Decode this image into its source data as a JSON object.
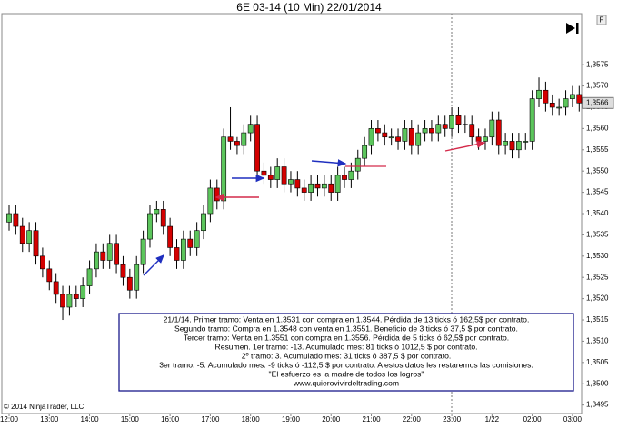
{
  "chart_data": {
    "type": "candlestick",
    "title": "6E 03-14 (10 Min)  22/01/2014",
    "copyright": "© 2014 NinjaTrader, LLC",
    "up_color": "#5cc55c",
    "down_color": "#d40000",
    "categories": [
      "12:00",
      null,
      null,
      null,
      null,
      null,
      "13:00",
      null,
      null,
      null,
      null,
      null,
      "14:00",
      null,
      null,
      null,
      null,
      null,
      "15:00",
      null,
      null,
      null,
      null,
      null,
      "16:00",
      null,
      null,
      null,
      null,
      null,
      "17:00",
      null,
      null,
      null,
      null,
      null,
      "18:00",
      null,
      null,
      null,
      null,
      null,
      "19:00",
      null,
      null,
      null,
      null,
      null,
      "20:00",
      null,
      null,
      null,
      null,
      null,
      "21:00",
      null,
      null,
      null,
      null,
      null,
      "22:00",
      null,
      null,
      null,
      null,
      null,
      "23:00",
      null,
      null,
      null,
      null,
      null,
      "1/22",
      null,
      null,
      null,
      null,
      null,
      "02:00",
      null,
      null,
      null,
      null,
      null,
      "03:00",
      null
    ],
    "open": [
      1.3538,
      1.354,
      1.3537,
      1.3533,
      1.3536,
      1.353,
      1.3527,
      1.3524,
      1.3521,
      1.3518,
      1.3521,
      1.352,
      1.3523,
      1.3527,
      1.3531,
      1.3529,
      1.3533,
      1.3528,
      1.3525,
      1.3522,
      1.3528,
      1.3534,
      1.354,
      1.3541,
      1.3537,
      1.3532,
      1.3529,
      1.3534,
      1.3532,
      1.3536,
      1.354,
      1.3546,
      1.3543,
      1.3558,
      1.3557,
      1.3556,
      1.3559,
      1.3561,
      1.355,
      1.3549,
      1.3548,
      1.3551,
      1.3547,
      1.3548,
      1.3546,
      1.3545,
      1.3547,
      1.3546,
      1.3547,
      1.3545,
      1.3549,
      1.3548,
      1.355,
      1.3553,
      1.3556,
      1.356,
      1.3559,
      1.3558,
      1.3558,
      1.3557,
      1.356,
      1.3556,
      1.3559,
      1.356,
      1.3559,
      1.3561,
      1.356,
      1.3563,
      1.3561,
      1.3561,
      1.3558,
      1.3557,
      1.3558,
      1.3562,
      1.3556,
      1.3557,
      1.3555,
      1.3557,
      1.3557,
      1.3567,
      1.3569,
      1.3566,
      1.3565,
      1.3565,
      1.3567,
      1.3568
    ],
    "high": [
      1.3542,
      1.3542,
      1.3539,
      1.3538,
      1.3538,
      1.3532,
      1.3529,
      1.3526,
      1.3523,
      1.3523,
      1.3523,
      1.3525,
      1.3529,
      1.3533,
      1.3533,
      1.3535,
      1.3535,
      1.353,
      1.3527,
      1.353,
      1.3536,
      1.3542,
      1.3543,
      1.3543,
      1.3539,
      1.3534,
      1.3536,
      1.3536,
      1.3538,
      1.3542,
      1.3548,
      1.3548,
      1.356,
      1.3565,
      1.3558,
      1.3561,
      1.3563,
      1.3563,
      1.3552,
      1.3551,
      1.3553,
      1.3553,
      1.355,
      1.355,
      1.3548,
      1.3549,
      1.3549,
      1.3549,
      1.3549,
      1.3551,
      1.3551,
      1.3552,
      1.3555,
      1.3558,
      1.3562,
      1.3562,
      1.3561,
      1.356,
      1.356,
      1.3562,
      1.3562,
      1.3561,
      1.3562,
      1.3562,
      1.3563,
      1.3563,
      1.3565,
      1.3565,
      1.3563,
      1.3563,
      1.356,
      1.356,
      1.3564,
      1.3564,
      1.3559,
      1.3559,
      1.3559,
      1.3559,
      1.3569,
      1.3572,
      1.3571,
      1.3568,
      1.3567,
      1.3569,
      1.357,
      1.357
    ],
    "low": [
      1.3536,
      1.3535,
      1.3531,
      1.3531,
      1.3528,
      1.3525,
      1.3522,
      1.3519,
      1.3515,
      1.3516,
      1.3518,
      1.3518,
      1.3521,
      1.3525,
      1.3527,
      1.3527,
      1.3526,
      1.3523,
      1.352,
      1.352,
      1.3526,
      1.3532,
      1.3538,
      1.3535,
      1.353,
      1.3527,
      1.3527,
      1.353,
      1.353,
      1.3534,
      1.3538,
      1.3541,
      1.3541,
      1.3555,
      1.3554,
      1.3554,
      1.3557,
      1.3548,
      1.3547,
      1.3546,
      1.3546,
      1.3545,
      1.3545,
      1.3544,
      1.3543,
      1.3543,
      1.3544,
      1.3544,
      1.3543,
      1.3543,
      1.3546,
      1.3546,
      1.3548,
      1.3551,
      1.3554,
      1.3557,
      1.3556,
      1.3556,
      1.3555,
      1.3555,
      1.3554,
      1.3554,
      1.3557,
      1.3557,
      1.3557,
      1.3558,
      1.3558,
      1.3559,
      1.3559,
      1.3556,
      1.3555,
      1.3555,
      1.3556,
      1.3554,
      1.3554,
      1.3553,
      1.3553,
      1.3555,
      1.3555,
      1.3565,
      1.3564,
      1.3563,
      1.3563,
      1.3563,
      1.3565,
      1.3564
    ],
    "close": [
      1.354,
      1.3537,
      1.3533,
      1.3536,
      1.353,
      1.3527,
      1.3524,
      1.3521,
      1.3518,
      1.3521,
      1.352,
      1.3523,
      1.3527,
      1.3531,
      1.3529,
      1.3533,
      1.3528,
      1.3525,
      1.3522,
      1.3528,
      1.3534,
      1.354,
      1.3541,
      1.3537,
      1.3532,
      1.3529,
      1.3534,
      1.3532,
      1.3536,
      1.354,
      1.3546,
      1.3543,
      1.3558,
      1.3557,
      1.3556,
      1.3559,
      1.3561,
      1.355,
      1.3549,
      1.3548,
      1.3551,
      1.3547,
      1.3548,
      1.3546,
      1.3545,
      1.3547,
      1.3546,
      1.3547,
      1.3545,
      1.3549,
      1.3548,
      1.355,
      1.3553,
      1.3556,
      1.356,
      1.3559,
      1.3558,
      1.3558,
      1.3557,
      1.356,
      1.3556,
      1.3559,
      1.356,
      1.3559,
      1.3561,
      1.356,
      1.3563,
      1.3561,
      1.3561,
      1.3558,
      1.3557,
      1.3558,
      1.3562,
      1.3556,
      1.3557,
      1.3555,
      1.3557,
      1.3557,
      1.3567,
      1.3569,
      1.3566,
      1.3565,
      1.3565,
      1.3567,
      1.3568,
      1.3566
    ],
    "ylim": [
      1.3493,
      1.3587
    ],
    "yticks": [
      {
        "value": 1.3495,
        "label": "1,3495"
      },
      {
        "value": 1.35,
        "label": "1,3500"
      },
      {
        "value": 1.3505,
        "label": "1,3505"
      },
      {
        "value": 1.351,
        "label": "1,3510"
      },
      {
        "value": 1.3515,
        "label": "1,3515"
      },
      {
        "value": 1.352,
        "label": "1,3520"
      },
      {
        "value": 1.3525,
        "label": "1,3525"
      },
      {
        "value": 1.353,
        "label": "1,3530"
      },
      {
        "value": 1.3535,
        "label": "1,3535"
      },
      {
        "value": 1.354,
        "label": "1,3540"
      },
      {
        "value": 1.3545,
        "label": "1,3545"
      },
      {
        "value": 1.355,
        "label": "1,3550"
      },
      {
        "value": 1.3555,
        "label": "1,3555"
      },
      {
        "value": 1.356,
        "label": "1,3560"
      },
      {
        "value": 1.3565,
        "label": "1,3565"
      },
      {
        "value": 1.357,
        "label": "1,3570"
      },
      {
        "value": 1.3575,
        "label": "1,3575"
      }
    ],
    "last_price": {
      "value": 1.3566,
      "label": "1,3566"
    },
    "annotation_lines": [
      "21/1/14. Primer tramo: Venta en 1.3531 con compra en 1.3544. Pérdida de 13 ticks ó 162,5$ por contrato.",
      "Segundo tramo: Compra en 1.3548 con venta en 1.3551. Beneficio de 3 ticks ó 37,5 $ por contrato.",
      "Tercer tramo: Venta en 1.3551 con compra en 1.3556. Pérdida de  5 ticks ó 62,5$ por contrato.",
      "Resumen. 1er tramo: -13. Acumulado mes: 81 ticks ó 1012,5 $ por contrato.",
      "2º tramo: 3. Acumulado mes: 31 ticks ó 387,5 $ por contrato.",
      "3er tramo: -5. Acumulado mes: -9 ticks ó -112,5 $ por contrato. A estos datos les restaremos las comisiones.",
      "\"El esfuerzo es la madre de todos los logros\"",
      "www.quierovivirdeltrading.com"
    ]
  }
}
